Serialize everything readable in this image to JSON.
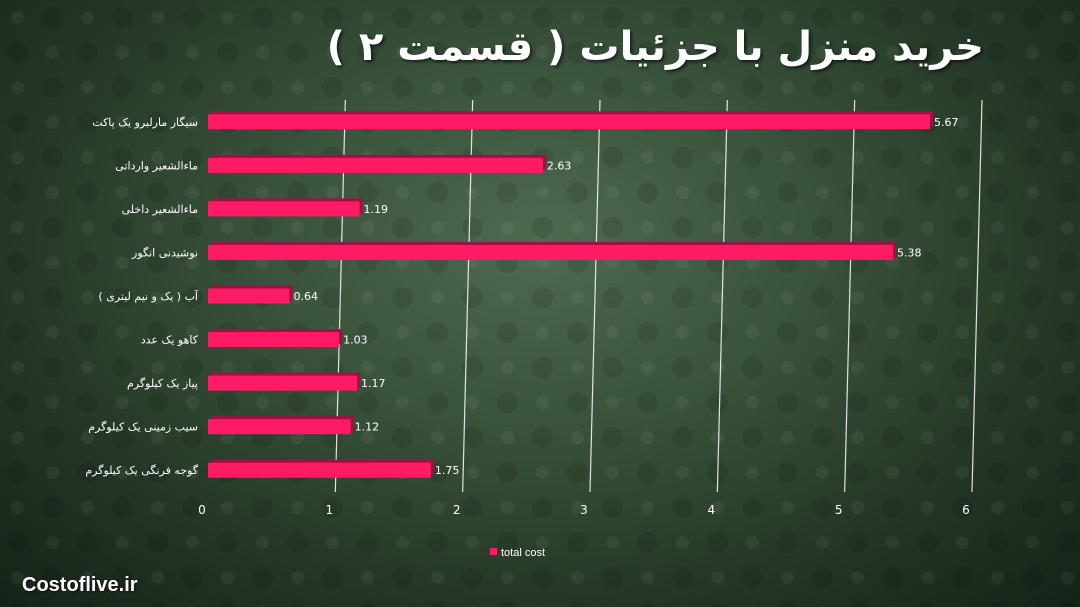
{
  "title": "خرید منزل با جزئیات ( قسمت ۲ )",
  "watermark": "Costoflive.ir",
  "colors": {
    "bar": "#ff1a66",
    "bar_shadow": "#a30f45",
    "label": "#ffffff",
    "grid": "#ffffff"
  },
  "chart_data": {
    "type": "bar",
    "orientation": "horizontal",
    "categories": [
      "سیگار مارلبرو یک پاکت",
      "ماءالشعیر وارداتی",
      "ماءالشعیر داخلی",
      "نوشیدنی انگور",
      "آب ( یک و نیم لیتری )",
      "کاهو  یک عدد",
      "پیاز یک کیلوگرم",
      "سیب زمینی یک کیلوگرم",
      "گوجه فرنگی یک کیلوگرم"
    ],
    "series": [
      {
        "name": "total cost",
        "values": [
          5.67,
          2.63,
          1.19,
          5.38,
          0.64,
          1.03,
          1.17,
          1.12,
          1.75
        ],
        "labels": [
          "5.67",
          "2.63",
          "1.19",
          "5.38",
          "0.64",
          "1.03",
          "1.17",
          "1.12",
          "1.75"
        ]
      }
    ],
    "xlim": [
      0,
      6
    ],
    "xticks": [
      "0",
      "1",
      "2",
      "3",
      "4",
      "5",
      "6"
    ],
    "grid": true,
    "legend": "bottom"
  }
}
